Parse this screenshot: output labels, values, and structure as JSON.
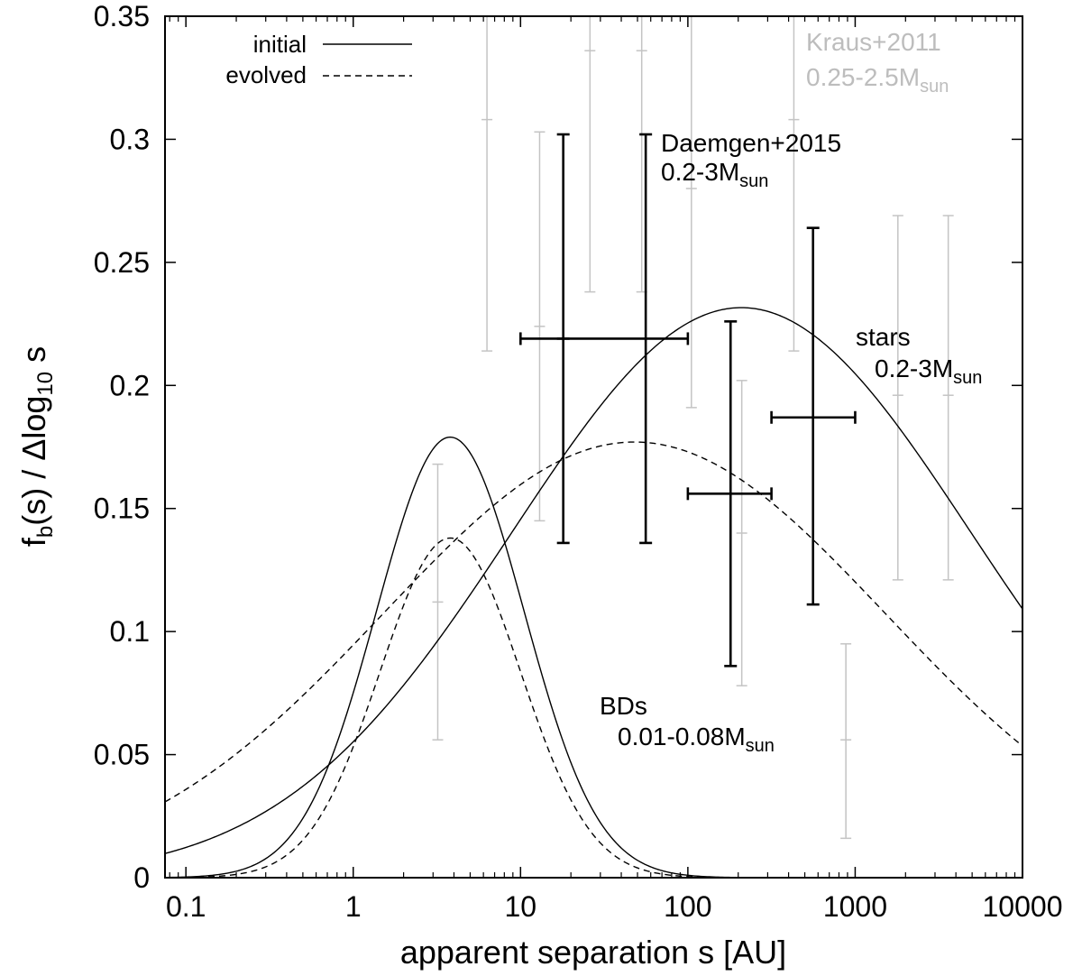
{
  "chart_data": {
    "type": "line",
    "xlabel": "apparent separation s [AU]",
    "ylabel": {
      "main": "f",
      "sub": "b",
      "rest": "(s) / Δlog",
      "sub2": "10",
      "end": " s"
    },
    "xscale": "log",
    "xlim": [
      0.075,
      10000
    ],
    "ylim": [
      0,
      0.35
    ],
    "xticks": [
      0.1,
      1,
      10,
      100,
      1000,
      10000
    ],
    "xtick_labels": [
      "0.1",
      "1",
      "10",
      "100",
      "1000",
      "10000"
    ],
    "yticks": [
      0,
      0.05,
      0.1,
      0.15,
      0.2,
      0.25,
      0.3,
      0.35
    ],
    "ytick_labels": [
      "0",
      "0.05",
      "0.1",
      "0.15",
      "0.2",
      "0.25",
      "0.3",
      "0.35"
    ],
    "legend": {
      "placement": "top-left",
      "entries": [
        {
          "label": "initial",
          "style": "solid"
        },
        {
          "label": "evolved",
          "style": "dashed"
        }
      ]
    },
    "series": [
      {
        "group": "stars",
        "style": "solid",
        "curve": "lognormal",
        "amplitude": 0.2316,
        "mu_log10": 2.32,
        "sigma_log10": 1.37
      },
      {
        "group": "stars",
        "style": "dashed",
        "curve": "lognormal",
        "amplitude": 0.177,
        "mu_log10": 1.68,
        "sigma_log10": 1.5
      },
      {
        "group": "BDs",
        "style": "solid",
        "curve": "lognormal",
        "amplitude": 0.179,
        "mu_log10": 0.58,
        "sigma_log10": 0.44
      },
      {
        "group": "BDs",
        "style": "dashed",
        "curve": "lognormal",
        "amplitude": 0.138,
        "mu_log10": 0.58,
        "sigma_log10": 0.42
      }
    ],
    "errorbars_daemgen2015": [
      {
        "x": 18,
        "y": 0.219,
        "ylo": 0.136,
        "yhi": 0.302
      },
      {
        "x": 56,
        "y": 0.219,
        "ylo": 0.136,
        "yhi": 0.302,
        "xlo": 10,
        "xhi": 100
      },
      {
        "x": 180,
        "y": 0.156,
        "ylo": 0.086,
        "yhi": 0.226,
        "xlo": 100,
        "xhi": 316
      },
      {
        "x": 560,
        "y": 0.187,
        "ylo": 0.111,
        "yhi": 0.264,
        "xlo": 316,
        "xhi": 1000
      }
    ],
    "errorbars_kraus2011": [
      {
        "x": 3.2,
        "y": 0.112,
        "ylo": 0.056,
        "yhi": 0.168
      },
      {
        "x": 6.3,
        "y": 0.308,
        "ylo": 0.214,
        "yhi": 0.35
      },
      {
        "x": 13,
        "y": 0.224,
        "ylo": 0.145,
        "yhi": 0.303
      },
      {
        "x": 26,
        "y": 0.336,
        "ylo": 0.238,
        "yhi": 0.35
      },
      {
        "x": 53,
        "y": 0.336,
        "ylo": 0.238,
        "yhi": 0.35
      },
      {
        "x": 105,
        "y": 0.28,
        "ylo": 0.191,
        "yhi": 0.35
      },
      {
        "x": 210,
        "y": 0.14,
        "ylo": 0.078,
        "yhi": 0.202
      },
      {
        "x": 430,
        "y": 0.308,
        "ylo": 0.214,
        "yhi": 0.35
      },
      {
        "x": 880,
        "y": 0.056,
        "ylo": 0.016,
        "yhi": 0.095
      },
      {
        "x": 1800,
        "y": 0.196,
        "ylo": 0.121,
        "yhi": 0.269
      },
      {
        "x": 3600,
        "y": 0.196,
        "ylo": 0.121,
        "yhi": 0.269
      }
    ],
    "annotations": {
      "kraus": {
        "line1": "Kraus+2011",
        "line2": "0.25-2.5M",
        "sub": "sun"
      },
      "daemgen": {
        "line1": "Daemgen+2015",
        "line2": "0.2-3M",
        "sub": "sun"
      },
      "stars": {
        "line1": "stars",
        "line2": "0.2-3M",
        "sub": "sun"
      },
      "bds": {
        "line1": "BDs",
        "line2": "0.01-0.08M",
        "sub": "sun"
      }
    }
  }
}
